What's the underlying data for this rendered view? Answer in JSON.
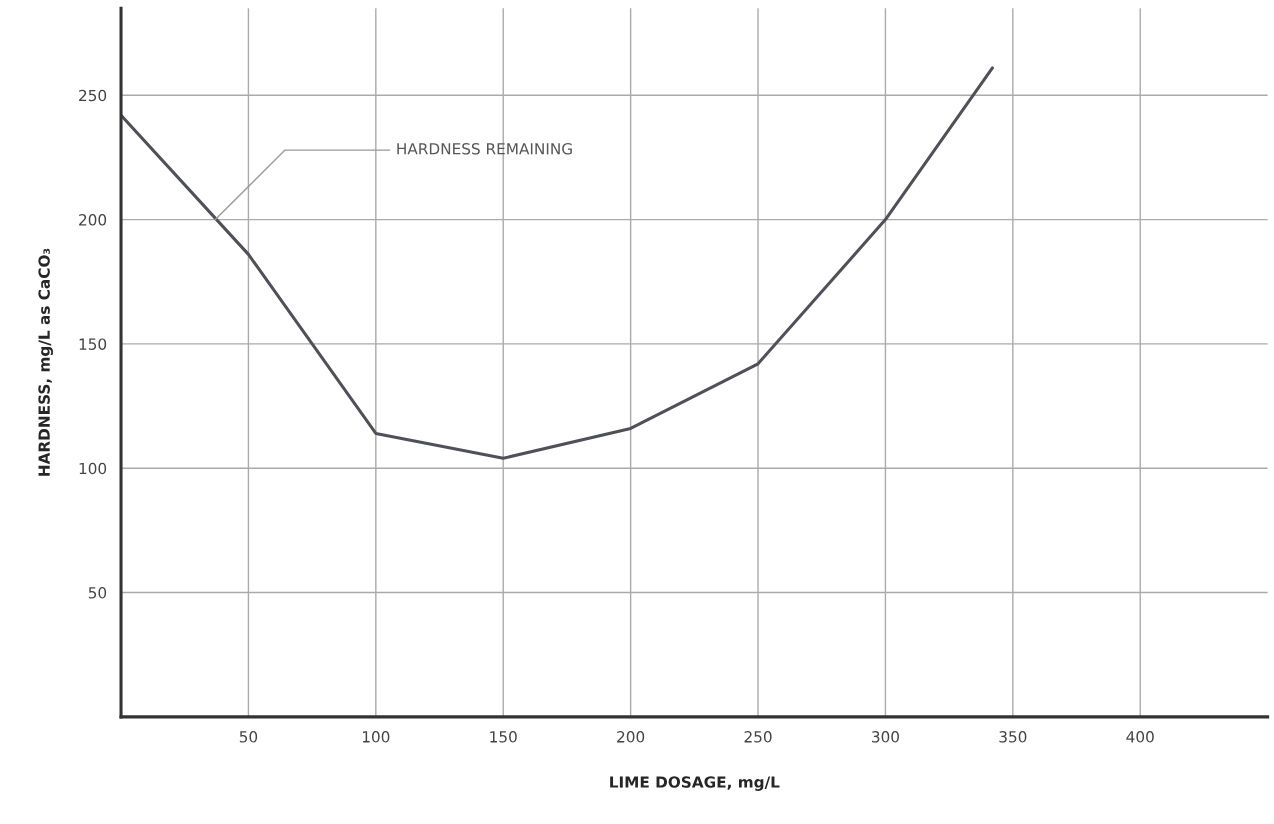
{
  "chart_data": {
    "type": "line",
    "xlabel": "LIME DOSAGE, mg/L",
    "ylabel": "HARDNESS, mg/L as CaCO₃",
    "x": [
      0,
      50,
      100,
      150,
      200,
      250,
      300,
      342
    ],
    "series": [
      {
        "color": "#505058",
        "values": [
          242,
          186,
          114,
          104,
          116,
          142,
          200,
          261
        ]
      }
    ],
    "xlim": [
      0,
      450
    ],
    "ylim": [
      0,
      285
    ],
    "xticks": [
      50,
      100,
      150,
      200,
      250,
      300,
      350,
      400
    ],
    "yticks": [
      50,
      100,
      150,
      200,
      250
    ],
    "grid": true,
    "marker": "none",
    "line_style": "solid",
    "annotations": [
      {
        "text": "HARDNESS REMAINING",
        "x": 37,
        "y": 200
      }
    ]
  }
}
